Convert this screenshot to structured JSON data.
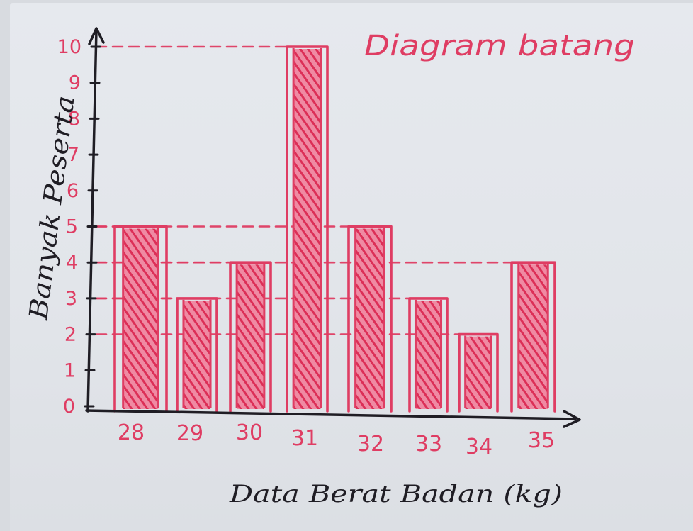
{
  "chart_data": {
    "type": "bar",
    "title": "Diagram batang",
    "xlabel": "Data Berat Badan (kg)",
    "ylabel": "Banyak Peserta",
    "categories": [
      "28",
      "29",
      "30",
      "31",
      "32",
      "33",
      "34",
      "35"
    ],
    "values": [
      5,
      3,
      4,
      10,
      5,
      3,
      2,
      4
    ],
    "ylim": [
      0,
      10
    ],
    "yticks": [
      "0",
      "1",
      "2",
      "3",
      "4",
      "5",
      "6",
      "7",
      "8",
      "9",
      "10"
    ],
    "grid": false,
    "legend": "none",
    "style": "hand-drawn, hatched bars"
  },
  "colors": {
    "ink_pink": "#df3d63",
    "ink_black": "#1f1d24",
    "paper": "#e4e7ec"
  }
}
